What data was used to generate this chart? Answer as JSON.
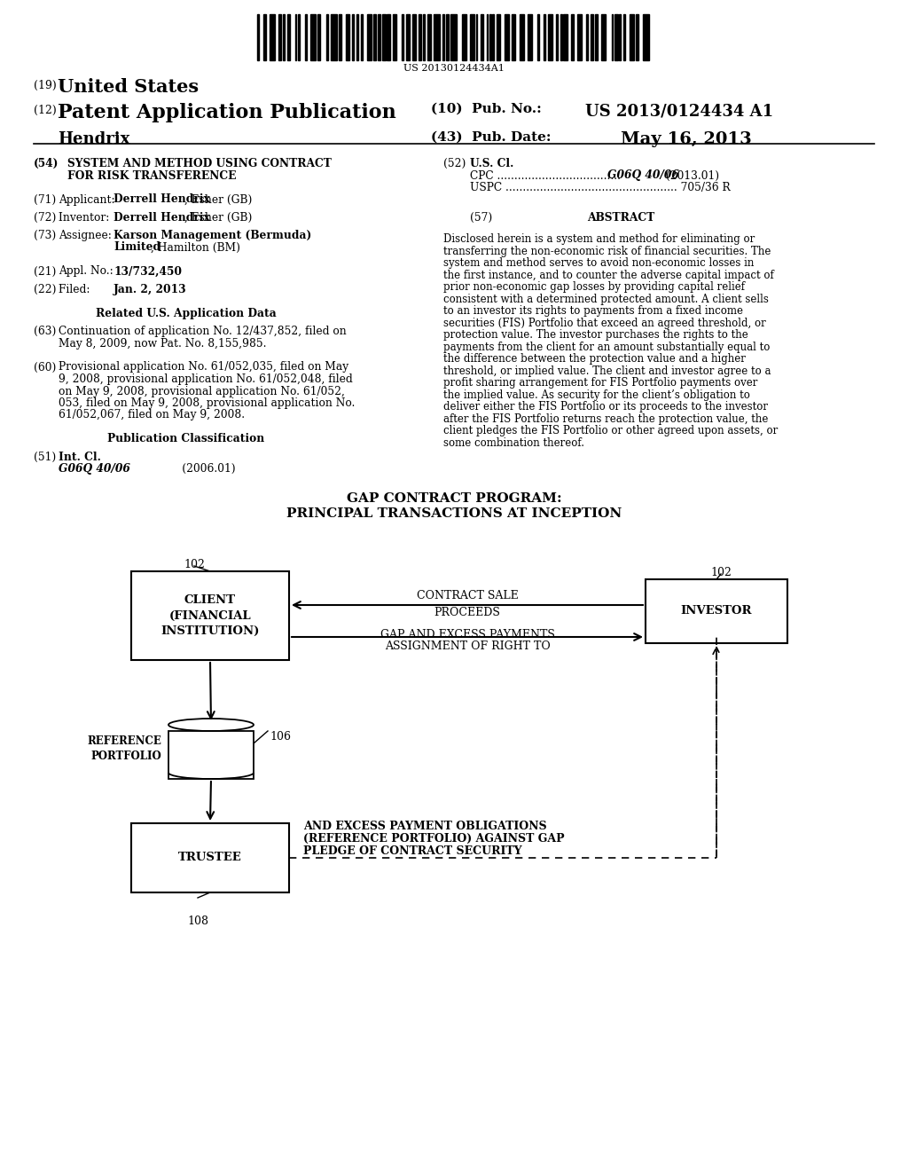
{
  "bg_color": "#ffffff",
  "barcode_text": "US 20130124434A1",
  "diagram_title1": "GAP CONTRACT PROGRAM:",
  "diagram_title2": "PRINCIPAL TRANSACTIONS AT INCEPTION",
  "client_box_text": "CLIENT\n(FINANCIAL\nINSTITUTION)",
  "investor_box_text": "INVESTOR",
  "trustee_box_text": "TRUSTEE",
  "ref_portfolio_text": "REFERENCE\nPORTFOLIO",
  "label_102a": "102",
  "label_102b": "102",
  "label_106": "106",
  "label_108": "108",
  "arrow_contract_sale_l1": "CONTRACT SALE",
  "arrow_contract_sale_l2": "PROCEEDS",
  "arrow_assignment_l1": "ASSIGNMENT OF RIGHT TO",
  "arrow_assignment_l2": "GAP AND EXCESS PAYMENTS",
  "dashed_pledge_l1": "PLEDGE OF CONTRACT SECURITY",
  "dashed_pledge_l2": "(REFERENCE PORTFOLIO) AGAINST GAP",
  "dashed_pledge_l3": "AND EXCESS PAYMENT OBLIGATIONS"
}
